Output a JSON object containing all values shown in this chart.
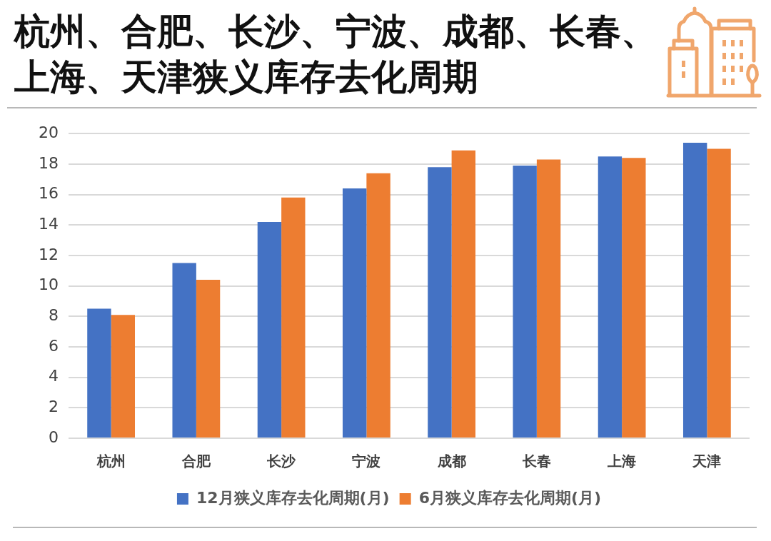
{
  "chart_data": {
    "type": "bar",
    "title": "杭州、合肥、长沙、宁波、成都、长春、上海、天津狭义库存去化周期",
    "categories": [
      "杭州",
      "合肥",
      "长沙",
      "宁波",
      "成都",
      "长春",
      "上海",
      "天津"
    ],
    "series": [
      {
        "name": "12月狭义库存去化周期(月)",
        "color": "#4472c4",
        "values": [
          8.5,
          11.5,
          14.2,
          16.4,
          17.8,
          17.9,
          18.5,
          19.4
        ]
      },
      {
        "name": "6月狭义库存去化周期(月)",
        "color": "#ed7d31",
        "values": [
          8.1,
          10.4,
          15.8,
          17.4,
          18.9,
          18.3,
          18.4,
          19.0
        ]
      }
    ],
    "ylim": [
      0,
      20
    ],
    "yticks": [
      0,
      2,
      4,
      6,
      8,
      10,
      12,
      14,
      16,
      18,
      20
    ],
    "grid": "y",
    "legend": "bottom"
  }
}
